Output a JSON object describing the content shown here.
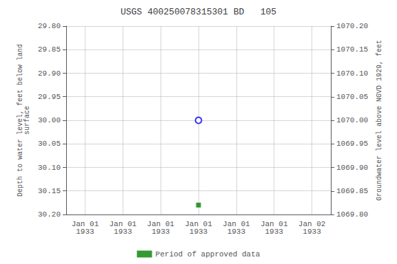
{
  "chart_data": {
    "type": "scatter",
    "title": "USGS 400250078315301 BD   105",
    "categories": [
      "Jan 01\n1933",
      "Jan 01\n1933",
      "Jan 01\n1933",
      "Jan 01\n1933",
      "Jan 01\n1933",
      "Jan 01\n1933",
      "Jan 02\n1933"
    ],
    "ylabel": "Depth to water level, feet below land\nsurface",
    "y2label": "Groundwater level above NGVD 1929, feet",
    "ylim": [
      30.2,
      29.8
    ],
    "yticks": [
      {
        "value": 29.8,
        "label": "29.80"
      },
      29.85,
      {
        "value": 29.9,
        "label": "29.90"
      },
      29.95,
      {
        "value": 30.0,
        "label": "30.00"
      },
      30.05,
      {
        "value": 30.1,
        "label": "30.10"
      },
      30.15,
      {
        "value": 30.2,
        "label": "30.20"
      }
    ],
    "y2lim": [
      1069.8,
      1070.2
    ],
    "y2ticks": [
      {
        "value": 1070.2,
        "label": "1070.20"
      },
      1070.15,
      {
        "value": 1070.1,
        "label": "1070.10"
      },
      1070.05,
      {
        "value": 1070.0,
        "label": "1070.00"
      },
      1069.95,
      {
        "value": 1069.9,
        "label": "1069.90"
      },
      1069.85,
      {
        "value": 1069.8,
        "label": "1069.80"
      }
    ],
    "grid": true,
    "legend": "bottom",
    "series": [
      {
        "color": "blue",
        "marker": "open_circle",
        "values": [
          null,
          null,
          null,
          30.0,
          null,
          null,
          null
        ]
      },
      {
        "name": "Period of approved data",
        "color": "#008000",
        "marker": "square",
        "values": [
          null,
          null,
          null,
          30.18,
          null,
          null,
          null
        ]
      }
    ]
  }
}
